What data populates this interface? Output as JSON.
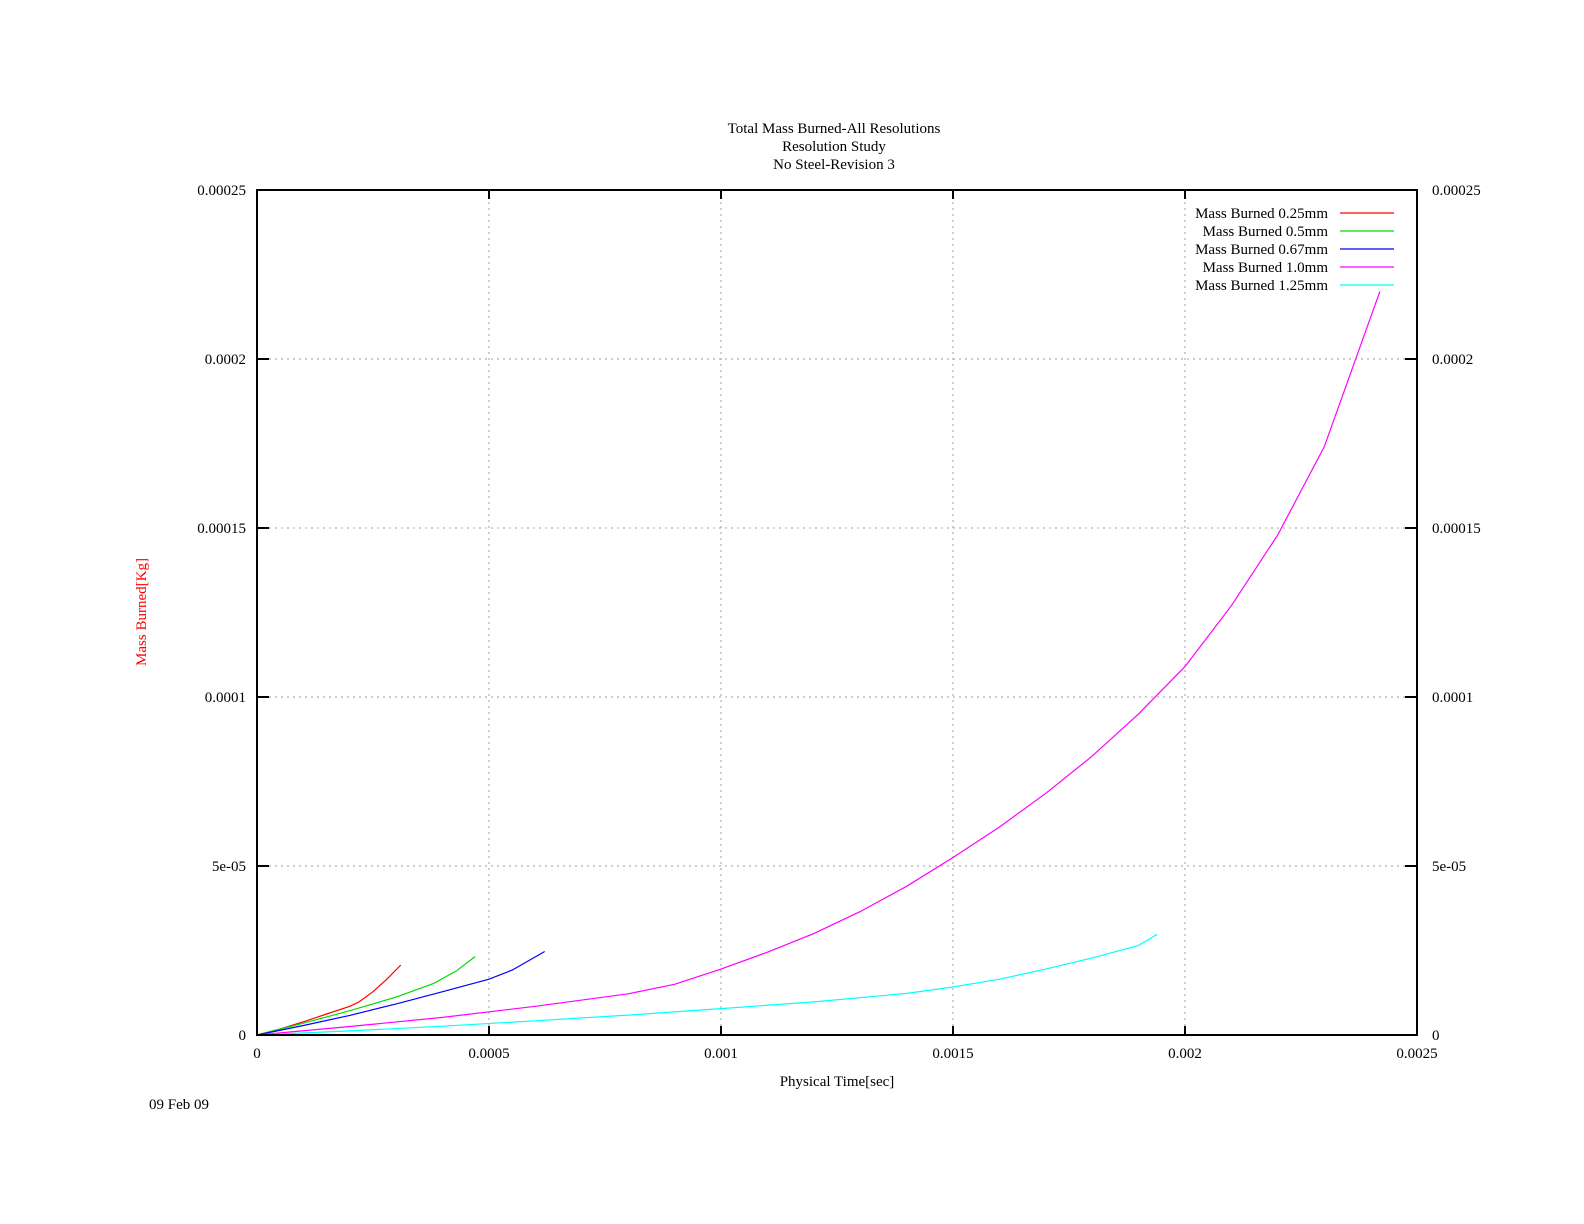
{
  "chart_data": {
    "type": "line",
    "title": [
      "Total Mass Burned-All Resolutions",
      "Resolution Study",
      "No Steel-Revision 3"
    ],
    "xlabel": "Physical Time[sec]",
    "ylabel": "Mass Burned[Kg]",
    "xlim": [
      0,
      0.0025
    ],
    "ylim": [
      0,
      0.00025
    ],
    "xticks": [
      0,
      0.0005,
      0.001,
      0.0015,
      0.002,
      0.0025
    ],
    "xtick_labels": [
      "0",
      "0.0005",
      "0.001",
      "0.0015",
      "0.002",
      "0.0025"
    ],
    "yticks": [
      0,
      5e-05,
      0.0001,
      0.00015,
      0.0002,
      0.00025
    ],
    "ytick_labels": [
      "0",
      "5e-05",
      "0.0001",
      "0.00015",
      "0.0002",
      "0.00025"
    ],
    "y2tick_labels": [
      "0",
      "5e-05",
      "0.0001",
      "0.00015",
      "0.0002",
      "0.00025"
    ],
    "grid": true,
    "legend_position": "top-right",
    "colors": {
      "ylabel": "#ff0000",
      "axis": "#000000",
      "grid": "#a0a0a0"
    },
    "series": [
      {
        "name": "Mass Burned 0.25mm",
        "color": "#ff0000",
        "x": [
          0,
          5e-05,
          0.0001,
          0.00015,
          0.0002,
          0.00022,
          0.00025,
          0.00028,
          0.00031
        ],
        "y": [
          0,
          1.8e-06,
          3.9e-06,
          6.2e-06,
          8.5e-06,
          9.8e-06,
          1.28e-05,
          1.65e-05,
          2.07e-05
        ]
      },
      {
        "name": "Mass Burned 0.5mm",
        "color": "#00dd00",
        "x": [
          0,
          0.0001,
          0.0002,
          0.0003,
          0.00038,
          0.00043,
          0.00047
        ],
        "y": [
          0,
          3.5e-06,
          7.2e-06,
          1.12e-05,
          1.52e-05,
          1.9e-05,
          2.32e-05
        ]
      },
      {
        "name": "Mass Burned 0.67mm",
        "color": "#0000ff",
        "x": [
          0,
          0.0001,
          0.0002,
          0.0003,
          0.0004,
          0.0005,
          0.00055,
          0.00062
        ],
        "y": [
          0,
          2.8e-06,
          5.8e-06,
          9.2e-06,
          1.28e-05,
          1.65e-05,
          1.92e-05,
          2.47e-05
        ]
      },
      {
        "name": "Mass Burned 1.0mm",
        "color": "#ff00ff",
        "x": [
          0,
          0.0002,
          0.0004,
          0.0006,
          0.0008,
          0.0009,
          0.001,
          0.0011,
          0.0012,
          0.0013,
          0.0014,
          0.0015,
          0.0016,
          0.0017,
          0.0018,
          0.0019,
          0.002,
          0.0021,
          0.0022,
          0.0023,
          0.00242
        ],
        "y": [
          0,
          2.5e-06,
          5.2e-06,
          8.5e-06,
          1.22e-05,
          1.5e-05,
          1.95e-05,
          2.45e-05,
          3e-05,
          3.65e-05,
          4.4e-05,
          5.25e-05,
          6.15e-05,
          7.15e-05,
          8.25e-05,
          9.5e-05,
          0.000109,
          0.000127,
          0.000148,
          0.000174,
          0.00022
        ]
      },
      {
        "name": "Mass Burned 1.25mm",
        "color": "#00ffff",
        "x": [
          0,
          0.0002,
          0.0004,
          0.0006,
          0.0008,
          0.001,
          0.0012,
          0.0014,
          0.0015,
          0.0016,
          0.0017,
          0.0018,
          0.0019,
          0.00194
        ],
        "y": [
          0,
          1.2e-06,
          2.6e-06,
          4.2e-06,
          5.9e-06,
          7.8e-06,
          9.8e-06,
          1.23e-05,
          1.42e-05,
          1.65e-05,
          1.95e-05,
          2.28e-05,
          2.65e-05,
          2.98e-05
        ]
      }
    ]
  },
  "footer": {
    "date": "09 Feb 09"
  }
}
